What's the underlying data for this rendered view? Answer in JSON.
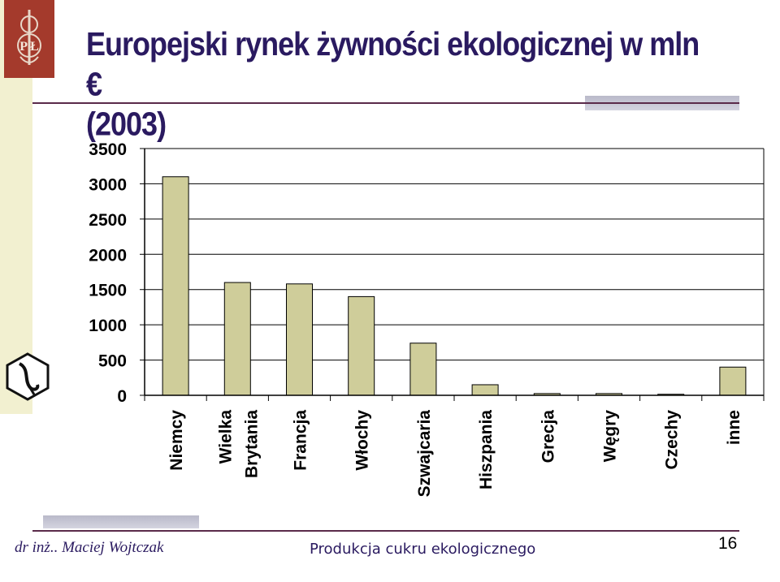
{
  "slide": {
    "footer_author": "dr inż.. Maciej Wojtczak",
    "footer_title": "Produkcja cukru ekologicznego",
    "page_number": "16",
    "logo_text": "P  Ł"
  },
  "chart_data": {
    "type": "bar",
    "title": "Europejski rynek żywności ekologicznej w mln €",
    "subtitle": "(2003)",
    "categories": [
      "Niemcy",
      "Wielka Brytania",
      "Francja",
      "Włochy",
      "Szwajcaria",
      "Hiszpania",
      "Grecja",
      "Węgry",
      "Czechy",
      "inne"
    ],
    "category_lines": [
      [
        "Niemcy"
      ],
      [
        "Wielka",
        "Brytania"
      ],
      [
        "Francja"
      ],
      [
        "Włochy"
      ],
      [
        "Szwajcaria"
      ],
      [
        "Hiszpania"
      ],
      [
        "Grecja"
      ],
      [
        "Węgry"
      ],
      [
        "Czechy"
      ],
      [
        "inne"
      ]
    ],
    "values": [
      3100,
      1600,
      1580,
      1400,
      740,
      150,
      25,
      25,
      15,
      400
    ],
    "yticks": [
      "0",
      "500",
      "1000",
      "1500",
      "2000",
      "2500",
      "3000",
      "3500"
    ],
    "ylim": [
      0,
      3500
    ],
    "grid": true,
    "colors": {
      "bar": "#cfcd9a",
      "grid": "#000000",
      "axis": "#000000"
    }
  }
}
